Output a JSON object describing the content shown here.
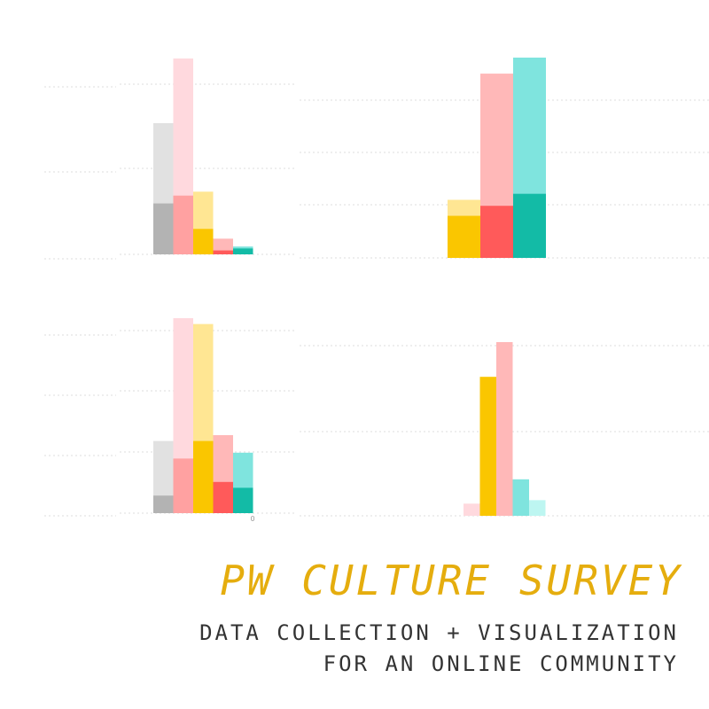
{
  "colors": {
    "gray_light": "#e1e1e1",
    "gray_dark": "#b3b3b3",
    "pink_light": "#ffd9de",
    "pink": "#ffb8b8",
    "pink_mid": "#ffa1a1",
    "red": "#ff5a5a",
    "yellow_light": "#ffe693",
    "yellow": "#fac600",
    "teal_light": "#7fe4de",
    "teal": "#13bba6",
    "cyan_light": "#bdf6f1",
    "grid": "#dddddd",
    "title": "#e5ad0e",
    "subtitle": "#333333"
  },
  "title": "PW CULTURE SURVEY",
  "subtitle_line1": "DATA COLLECTION + VISUALIZATION",
  "subtitle_line2": "FOR AN ONLINE COMMUNITY",
  "chart_data": [
    {
      "type": "bar",
      "panel": "top-left",
      "ylim": [
        0,
        100
      ],
      "grid": true,
      "bars": [
        {
          "total": 67,
          "inner": 26,
          "outer_color": "gray_light",
          "inner_color": "gray_dark"
        },
        {
          "total": 100,
          "inner": 30,
          "outer_color": "pink_light",
          "inner_color": "pink_mid"
        },
        {
          "total": 32,
          "inner": 13,
          "outer_color": "yellow_light",
          "inner_color": "yellow"
        },
        {
          "total": 8,
          "inner": 2,
          "outer_color": "pink",
          "inner_color": "red"
        },
        {
          "total": 4,
          "inner": 3,
          "outer_color": "teal_light",
          "inner_color": "teal"
        }
      ]
    },
    {
      "type": "bar",
      "panel": "top-right",
      "ylim": [
        0,
        100
      ],
      "grid": true,
      "bars": [
        {
          "total": 29,
          "inner": 21,
          "outer_color": "yellow_light",
          "inner_color": "yellow"
        },
        {
          "total": 92,
          "inner": 26,
          "outer_color": "pink",
          "inner_color": "red"
        },
        {
          "total": 100,
          "inner": 32,
          "outer_color": "teal_light",
          "inner_color": "teal"
        }
      ]
    },
    {
      "type": "bar",
      "panel": "bottom-left",
      "ylim": [
        0,
        100
      ],
      "grid": true,
      "tick_label": "0",
      "bars": [
        {
          "total": 37,
          "inner": 9,
          "outer_color": "gray_light",
          "inner_color": "gray_dark"
        },
        {
          "total": 100,
          "inner": 28,
          "outer_color": "pink_light",
          "inner_color": "pink_mid"
        },
        {
          "total": 97,
          "inner": 37,
          "outer_color": "yellow_light",
          "inner_color": "yellow"
        },
        {
          "total": 40,
          "inner": 16,
          "outer_color": "pink",
          "inner_color": "red"
        },
        {
          "total": 31,
          "inner": 13,
          "outer_color": "teal_light",
          "inner_color": "teal"
        }
      ]
    },
    {
      "type": "bar",
      "panel": "bottom-right",
      "ylim": [
        0,
        100
      ],
      "grid": true,
      "bars": [
        {
          "value": 7,
          "color": "pink_light"
        },
        {
          "value": 80,
          "color": "yellow"
        },
        {
          "value": 100,
          "color": "pink"
        },
        {
          "value": 21,
          "color": "teal_light"
        },
        {
          "value": 9,
          "color": "cyan_light"
        }
      ]
    }
  ]
}
